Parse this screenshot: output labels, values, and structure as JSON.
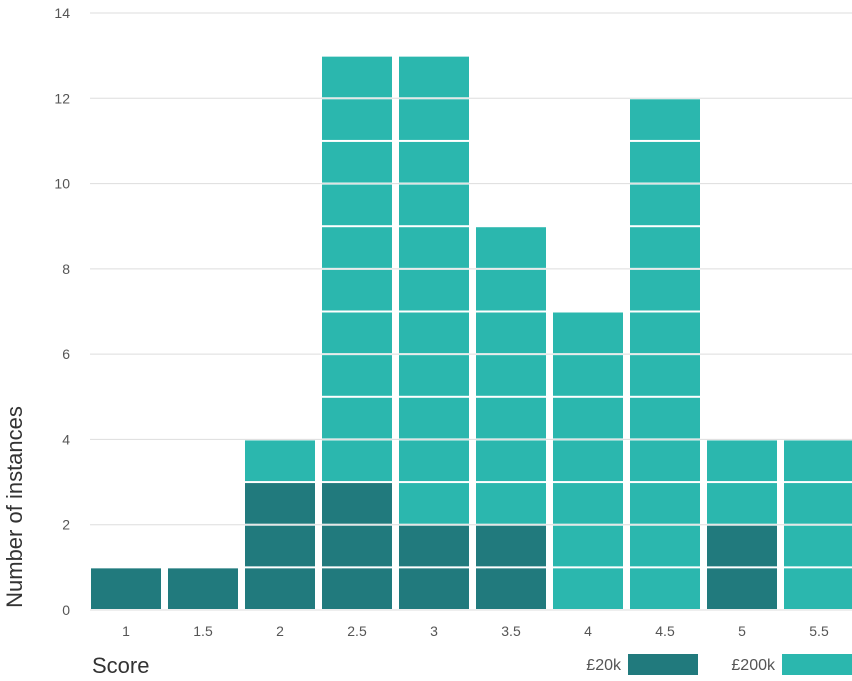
{
  "chart_data": {
    "type": "bar",
    "stacked": true,
    "unit_blocks": true,
    "categories": [
      "1",
      "1.5",
      "2",
      "2.5",
      "3",
      "3.5",
      "4",
      "4.5",
      "5",
      "5.5"
    ],
    "series": [
      {
        "name": "£20k",
        "color": "#217a7d",
        "values": [
          1,
          1,
          3,
          3,
          2,
          2,
          0,
          0,
          2,
          0
        ]
      },
      {
        "name": "£200k",
        "color": "#2bb7ae",
        "values": [
          0,
          0,
          1,
          10,
          11,
          7,
          7,
          12,
          2,
          4
        ]
      }
    ],
    "xlabel": "Score",
    "ylabel": "Number of instances",
    "ylim": [
      0,
      14
    ],
    "yticks": [
      "0",
      "2",
      "4",
      "6",
      "8",
      "10",
      "12",
      "14"
    ],
    "grid": true,
    "legend_position": "bottom-right"
  }
}
